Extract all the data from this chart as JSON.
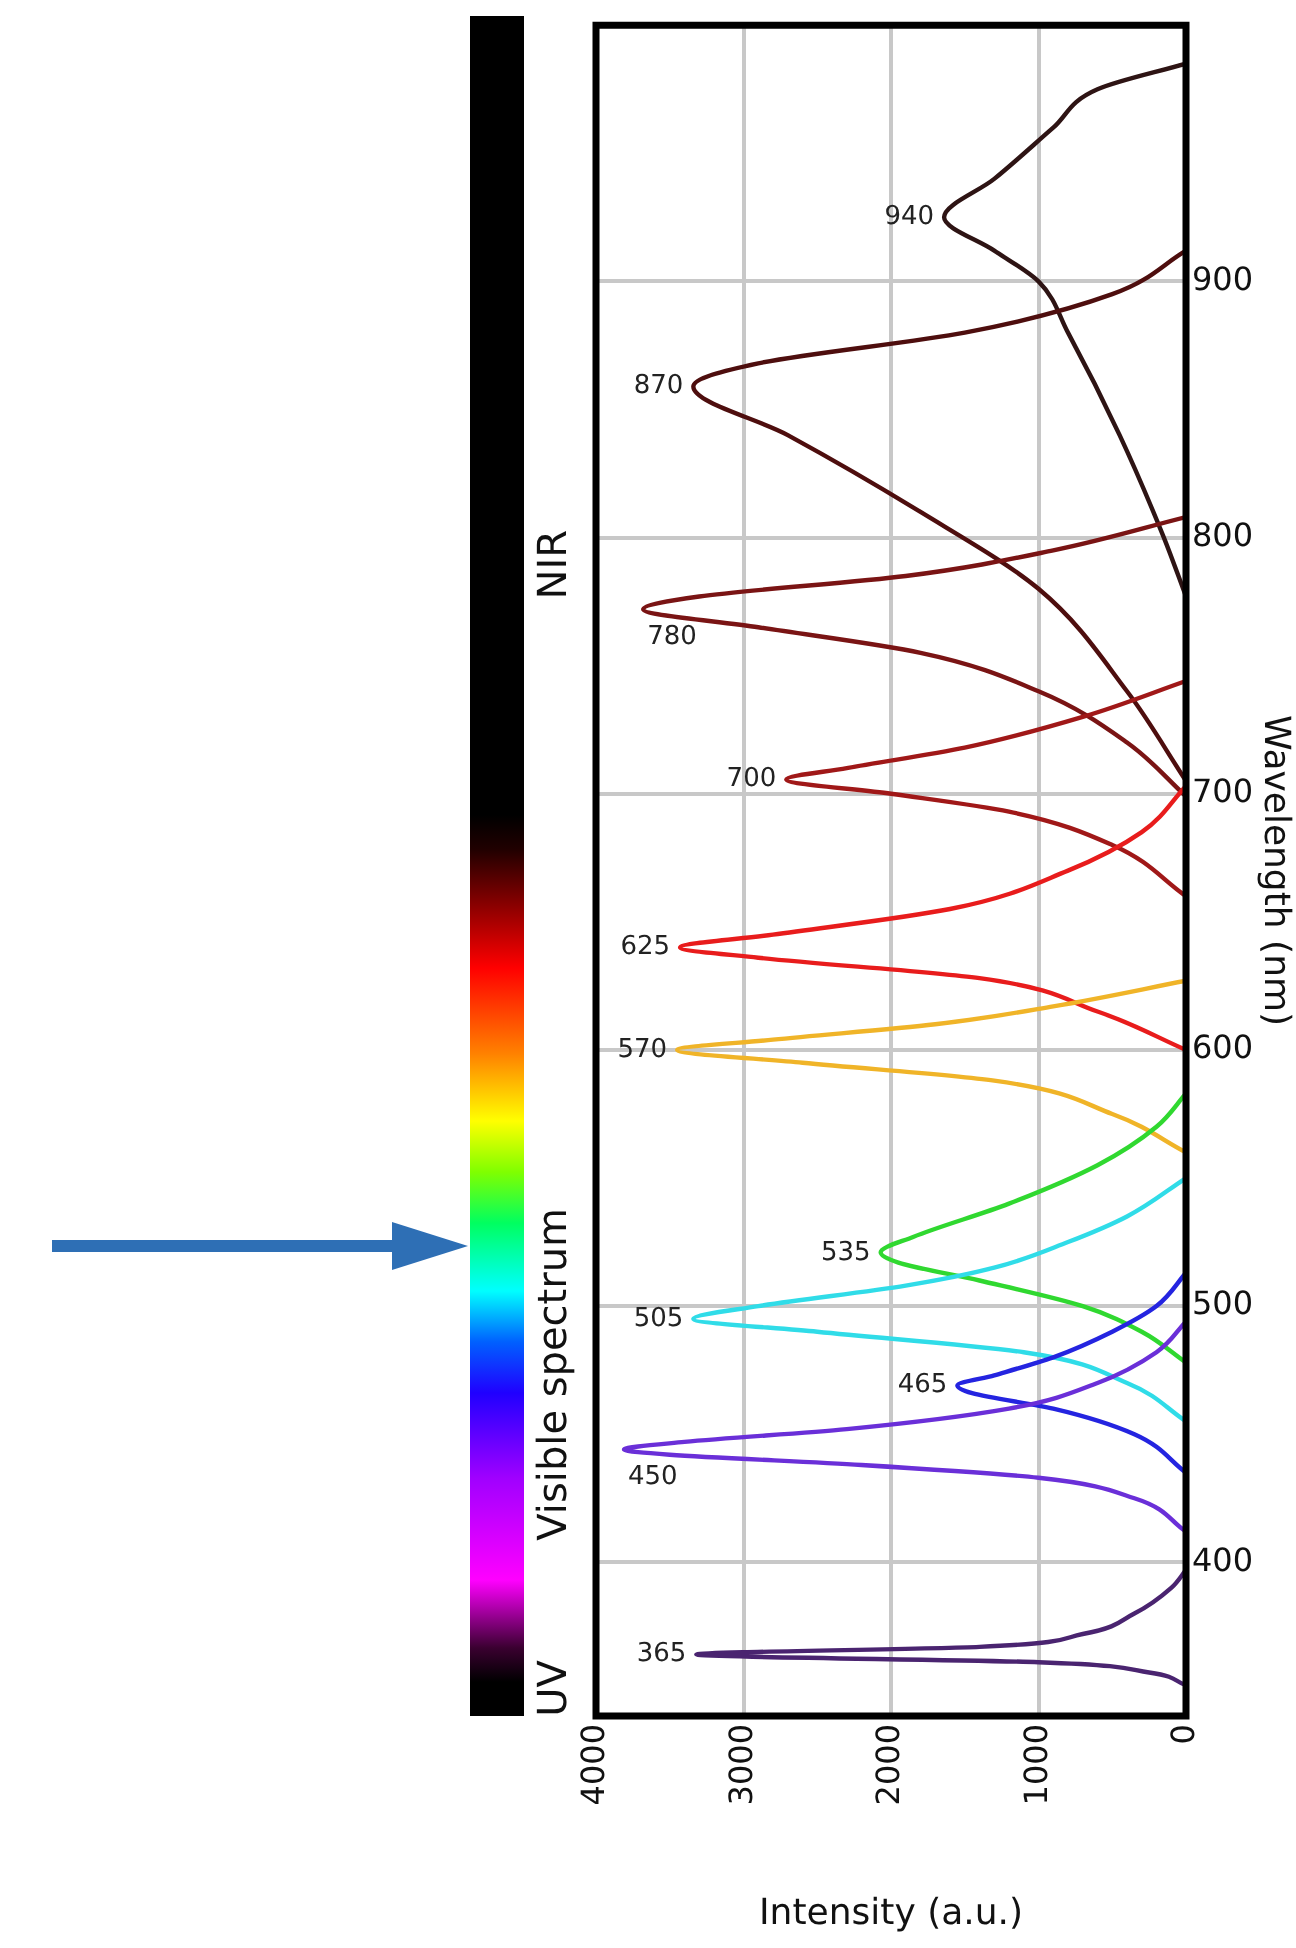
{
  "chart_data": {
    "type": "line",
    "xlabel": "Intensity (a.u.)",
    "ylabel": "Wavelength (nm)",
    "xlim": [
      4000,
      0
    ],
    "xticks": [
      4000,
      3000,
      2000,
      1000,
      0
    ],
    "ylim": [
      340,
      1000
    ],
    "yticks": [
      400,
      500,
      600,
      700,
      800,
      900
    ],
    "grid": true,
    "legend": false,
    "marker": "none",
    "line_style": "solid",
    "series": [
      {
        "color": "#4a2470",
        "values": [
          352,
          357,
          361,
          364,
          367,
          372,
          380,
          390,
          397
        ],
        "x": [
          0,
          250,
          1000,
          3320,
          1400,
          700,
          350,
          100,
          0
        ]
      },
      {
        "color": "#6a2fd8",
        "values": [
          412,
          425,
          433,
          438,
          442,
          444,
          447,
          452,
          460,
          470,
          482,
          494
        ],
        "x": [
          0,
          350,
          1000,
          2200,
          3500,
          3810,
          3400,
          2300,
          1200,
          600,
          200,
          0
        ]
      },
      {
        "color": "#2424e0",
        "values": [
          435,
          450,
          460,
          466,
          469,
          473,
          480,
          490,
          500,
          513
        ],
        "x": [
          0,
          350,
          900,
          1450,
          1550,
          1300,
          900,
          500,
          200,
          0
        ]
      },
      {
        "color": "#30dce8",
        "values": [
          455,
          470,
          482,
          490,
          495,
          500,
          508,
          515,
          525,
          535,
          550
        ],
        "x": [
          0,
          400,
          1100,
          2500,
          3340,
          2900,
          1900,
          1300,
          800,
          400,
          0
        ]
      },
      {
        "color": "#30d830",
        "values": [
          478,
          490,
          500,
          510,
          517,
          521,
          527,
          540,
          555,
          570,
          583
        ],
        "x": [
          0,
          300,
          700,
          1400,
          1950,
          2070,
          1850,
          1200,
          600,
          200,
          0
        ]
      },
      {
        "color": "#f0b428",
        "values": [
          560,
          575,
          588,
          595,
          600,
          604,
          610,
          617,
          627
        ],
        "x": [
          0,
          500,
          1300,
          2600,
          3450,
          2800,
          1700,
          900,
          0
        ]
      },
      {
        "color": "#e81c1c",
        "values": [
          600,
          615,
          628,
          636,
          640,
          645,
          655,
          670,
          685,
          703
        ],
        "x": [
          0,
          600,
          1400,
          2900,
          3430,
          2800,
          1600,
          800,
          300,
          0
        ]
      },
      {
        "color": "#a01818",
        "values": [
          660,
          680,
          693,
          700,
          705.6,
          710,
          718,
          730,
          744
        ],
        "x": [
          0,
          500,
          1200,
          2000,
          2710,
          2300,
          1500,
          700,
          0
        ]
      },
      {
        "color": "#7a1414",
        "values": [
          699,
          720,
          740,
          755,
          765,
          772,
          777,
          785,
          795,
          808
        ],
        "x": [
          0,
          400,
          1000,
          1800,
          2900,
          3680,
          3300,
          1900,
          900,
          0
        ]
      },
      {
        "color": "#4e0e0e",
        "values": [
          705,
          740,
          780,
          810,
          840,
          859,
          868,
          880,
          895,
          912
        ],
        "x": [
          0,
          400,
          1000,
          1800,
          2700,
          3340,
          2900,
          1500,
          500,
          0
        ]
      },
      {
        "color": "#2e1414",
        "values": [
          777,
          800,
          840,
          880,
          900,
          912,
          925,
          940,
          960,
          975,
          985
        ],
        "x": [
          0,
          150,
          450,
          800,
          1000,
          1300,
          1640,
          1300,
          900,
          600,
          0
        ]
      }
    ],
    "annotations": [
      {
        "text": "365",
        "x": 3320,
        "y": 364
      },
      {
        "text": "450",
        "x": 3810,
        "y": 444
      },
      {
        "text": "465",
        "x": 1550,
        "y": 469
      },
      {
        "text": "505",
        "x": 3340,
        "y": 495
      },
      {
        "text": "535",
        "x": 2070,
        "y": 520.6
      },
      {
        "text": "570",
        "x": 3450,
        "y": 600
      },
      {
        "text": "625",
        "x": 3430,
        "y": 640
      },
      {
        "text": "700",
        "x": 2710,
        "y": 705.6
      },
      {
        "text": "780",
        "x": 3680,
        "y": 772
      },
      {
        "text": "870",
        "x": 3340,
        "y": 859
      },
      {
        "text": "940",
        "x": 1640,
        "y": 925
      },
      "UV",
      "Visible spectrum",
      "NIR"
    ]
  }
}
